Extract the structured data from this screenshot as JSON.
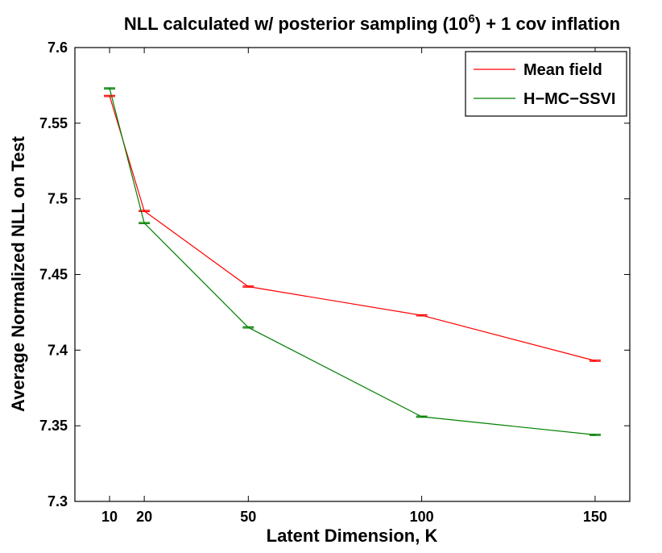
{
  "chart_data": {
    "type": "line",
    "title_main": "NLL calculated w/ posterior sampling (10",
    "title_exp": "6",
    "title_tail": ") + 1 cov inflation",
    "xlabel": "Latent Dimension, K",
    "ylabel": "Average Normalized NLL on Test",
    "x": [
      10,
      20,
      50,
      100,
      150
    ],
    "xlim": [
      0,
      160
    ],
    "ylim": [
      7.3,
      7.6
    ],
    "xticks": [
      10,
      20,
      50,
      100,
      150
    ],
    "xtick_labels": [
      "10",
      "20",
      "50",
      "100",
      "150"
    ],
    "yticks": [
      7.3,
      7.35,
      7.4,
      7.45,
      7.5,
      7.55,
      7.6
    ],
    "ytick_labels": [
      "7.3",
      "7.35",
      "7.4",
      "7.45",
      "7.5",
      "7.55",
      "7.6"
    ],
    "legend_position": "top-right",
    "series": [
      {
        "name": "Mean field",
        "color": "#ff0000",
        "values": [
          7.568,
          7.492,
          7.442,
          7.423,
          7.393
        ],
        "errors": [
          0.0004,
          0.0004,
          0.0004,
          0.0004,
          0.0004
        ]
      },
      {
        "name": "H−MC−SSVI",
        "color": "#008000",
        "values": [
          7.573,
          7.484,
          7.415,
          7.356,
          7.344
        ],
        "errors": [
          0.0004,
          0.0004,
          0.0004,
          0.0004,
          0.0004
        ]
      }
    ]
  }
}
